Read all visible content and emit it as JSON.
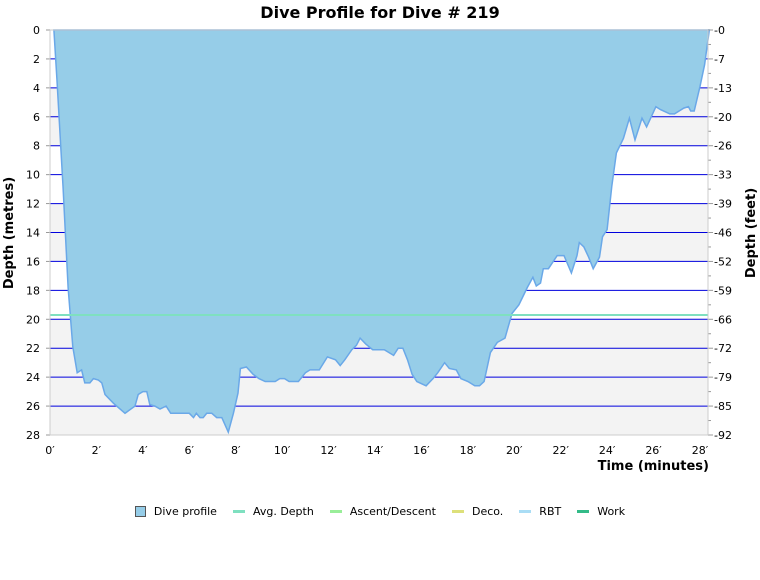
{
  "chart_data": {
    "type": "area",
    "title": "Dive Profile for Dive # 219",
    "xlabel": "Time (minutes)",
    "ylabel": "Depth (metres)",
    "y2label": "Depth (feet)",
    "xlim": [
      0,
      28.4
    ],
    "ylim": [
      0,
      28
    ],
    "y_inverted": true,
    "grid": true,
    "legend_position": "bottom",
    "x_ticks": [
      "0′",
      "2′",
      "4′",
      "6′",
      "8′",
      "10′",
      "12′",
      "14′",
      "16′",
      "18′",
      "20′",
      "22′",
      "24′",
      "26′",
      "28′"
    ],
    "y_ticks": [
      "0",
      "2",
      "4",
      "6",
      "8",
      "10",
      "12",
      "14",
      "16",
      "18",
      "20",
      "22",
      "24",
      "26",
      "28"
    ],
    "y2_ticks": [
      "0",
      "7",
      "13",
      "20",
      "26",
      "33",
      "39",
      "46",
      "52",
      "59",
      "66",
      "72",
      "79",
      "85",
      "92"
    ],
    "avg_depth": 19.7,
    "series": [
      {
        "name": "Dive profile",
        "color": "#96cde8",
        "line_color": "#6aa8e8",
        "x": [
          0.17,
          0.3,
          0.56,
          0.78,
          0.98,
          1.17,
          1.36,
          1.5,
          1.72,
          1.87,
          2.08,
          2.23,
          2.37,
          2.73,
          3.23,
          3.66,
          3.8,
          4.0,
          4.17,
          4.3,
          4.52,
          4.74,
          5.0,
          5.2,
          6.0,
          6.18,
          6.3,
          6.46,
          6.6,
          6.75,
          6.97,
          7.18,
          7.4,
          7.68,
          7.9,
          8.1,
          8.2,
          8.46,
          8.75,
          9.0,
          9.27,
          9.7,
          9.9,
          10.1,
          10.3,
          10.7,
          11.0,
          11.2,
          11.6,
          11.95,
          12.3,
          12.5,
          12.7,
          13.0,
          13.2,
          13.36,
          13.6,
          13.9,
          14.4,
          14.8,
          15.0,
          15.2,
          15.4,
          15.6,
          15.8,
          16.2,
          16.5,
          16.7,
          17.0,
          17.2,
          17.5,
          17.7,
          18.0,
          18.3,
          18.5,
          18.7,
          18.97,
          19.27,
          19.6,
          19.9,
          20.2,
          20.56,
          20.8,
          20.95,
          21.13,
          21.25,
          21.47,
          21.85,
          22.14,
          22.46,
          22.7,
          22.8,
          23.0,
          23.2,
          23.4,
          23.67,
          23.8,
          24.0,
          24.2,
          24.4,
          24.7,
          24.96,
          25.2,
          25.5,
          25.7,
          26.1,
          26.3,
          26.7,
          26.9,
          27.3,
          27.5,
          27.6,
          27.75,
          28.0,
          28.2,
          28.4
        ],
        "y": [
          0,
          3.5,
          10.8,
          17.8,
          21.9,
          23.7,
          23.5,
          24.4,
          24.4,
          24.1,
          24.2,
          24.4,
          25.2,
          25.8,
          26.5,
          26.0,
          25.2,
          25.0,
          25.0,
          25.9,
          26.0,
          26.2,
          26.0,
          26.5,
          26.5,
          26.8,
          26.5,
          26.8,
          26.8,
          26.5,
          26.5,
          26.8,
          26.8,
          27.8,
          26.5,
          25.1,
          23.4,
          23.3,
          23.8,
          24.1,
          24.3,
          24.3,
          24.1,
          24.1,
          24.3,
          24.3,
          23.7,
          23.5,
          23.5,
          22.6,
          22.8,
          23.2,
          22.8,
          22.1,
          21.8,
          21.3,
          21.7,
          22.1,
          22.1,
          22.5,
          22.0,
          22.0,
          22.8,
          23.8,
          24.3,
          24.6,
          24.1,
          23.7,
          23.0,
          23.4,
          23.5,
          24.1,
          24.3,
          24.6,
          24.6,
          24.3,
          22.3,
          21.6,
          21.3,
          19.6,
          19.0,
          17.8,
          17.1,
          17.7,
          17.5,
          16.5,
          16.5,
          15.6,
          15.6,
          16.8,
          15.6,
          14.7,
          15.0,
          15.7,
          16.5,
          15.7,
          14.3,
          13.8,
          10.8,
          8.5,
          7.5,
          6.1,
          7.6,
          6.1,
          6.7,
          5.3,
          5.5,
          5.8,
          5.8,
          5.4,
          5.3,
          5.6,
          5.6,
          3.9,
          2.4,
          0
        ]
      }
    ],
    "legend": [
      {
        "name": "Dive profile",
        "color": "#96cde8",
        "kind": "box"
      },
      {
        "name": "Avg. Depth",
        "color": "#7fe0c0",
        "kind": "line"
      },
      {
        "name": "Ascent/Descent",
        "color": "#99ee99",
        "kind": "line"
      },
      {
        "name": "Deco.",
        "color": "#dde07a",
        "kind": "line"
      },
      {
        "name": "RBT",
        "color": "#aaddf5",
        "kind": "line"
      },
      {
        "name": "Work",
        "color": "#33bb88",
        "kind": "line"
      }
    ]
  }
}
